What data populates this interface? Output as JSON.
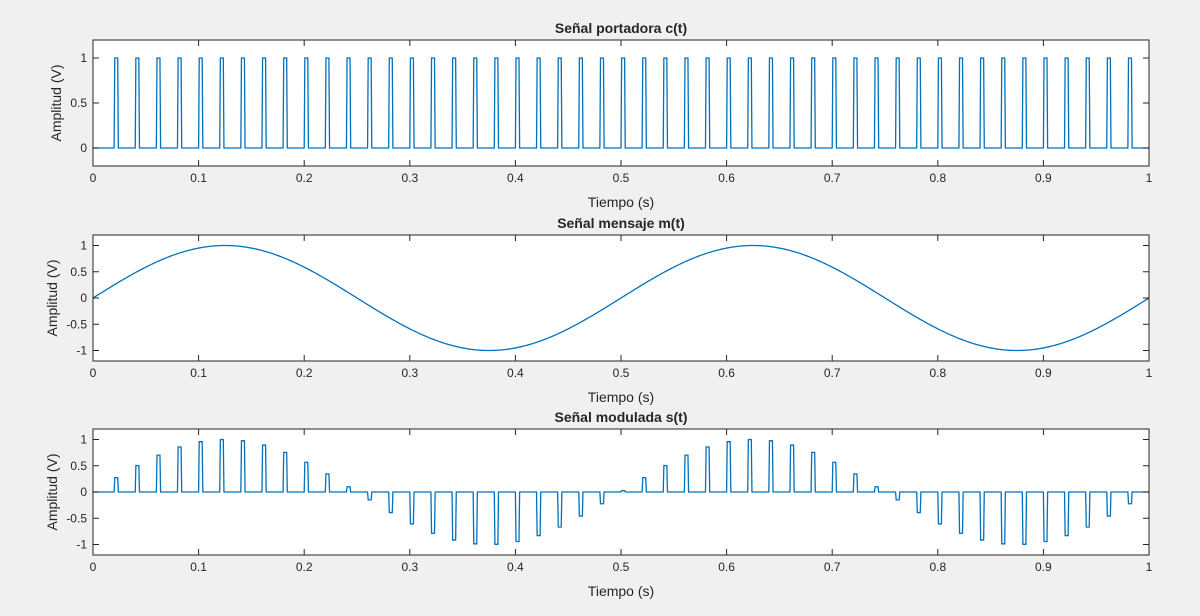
{
  "colors": {
    "background": "#f0f0f0",
    "axes_face": "#ffffff",
    "axes_edge": "#262626",
    "line": "#0072bd"
  },
  "chart_data": [
    {
      "type": "line",
      "title": "Señal portadora c(t)",
      "xlabel": "Tiempo (s)",
      "ylabel": "Amplitud (V)",
      "xlim": [
        0,
        1
      ],
      "ylim": [
        -0.2,
        1.2
      ],
      "xticks": [
        "0",
        "0.1",
        "0.2",
        "0.3",
        "0.4",
        "0.5",
        "0.6",
        "0.7",
        "0.8",
        "0.9",
        "1"
      ],
      "yticks": [
        "0",
        "0.5",
        "1"
      ],
      "grid": false,
      "signal": {
        "kind": "pulse_train",
        "period_s": 0.02,
        "pulse_start_s": 0.02,
        "pulse_width_s": 0.004,
        "low": 0,
        "high": 1
      }
    },
    {
      "type": "line",
      "title": "Señal mensaje m(t)",
      "xlabel": "Tiempo (s)",
      "ylabel": "Amplitud (V)",
      "xlim": [
        0,
        1
      ],
      "ylim": [
        -1.2,
        1.2
      ],
      "xticks": [
        "0",
        "0.1",
        "0.2",
        "0.3",
        "0.4",
        "0.5",
        "0.6",
        "0.7",
        "0.8",
        "0.9",
        "1"
      ],
      "yticks": [
        "-1",
        "-0.5",
        "0",
        "0.5",
        "1"
      ],
      "grid": false,
      "signal": {
        "kind": "sine",
        "frequency_hz": 2,
        "amplitude": 1
      }
    },
    {
      "type": "line",
      "title": "Señal modulada s(t)",
      "xlabel": "Tiempo (s)",
      "ylabel": "Amplitud (V)",
      "xlim": [
        0,
        1
      ],
      "ylim": [
        -1.2,
        1.2
      ],
      "xticks": [
        "0",
        "0.1",
        "0.2",
        "0.3",
        "0.4",
        "0.5",
        "0.6",
        "0.7",
        "0.8",
        "0.9",
        "1"
      ],
      "yticks": [
        "-1",
        "-0.5",
        "0",
        "0.5",
        "1"
      ],
      "grid": false,
      "signal": {
        "kind": "pam",
        "period_s": 0.02,
        "pulse_start_s": 0.02,
        "pulse_width_s": 0.004,
        "message_frequency_hz": 2,
        "amplitude": 1
      }
    }
  ]
}
